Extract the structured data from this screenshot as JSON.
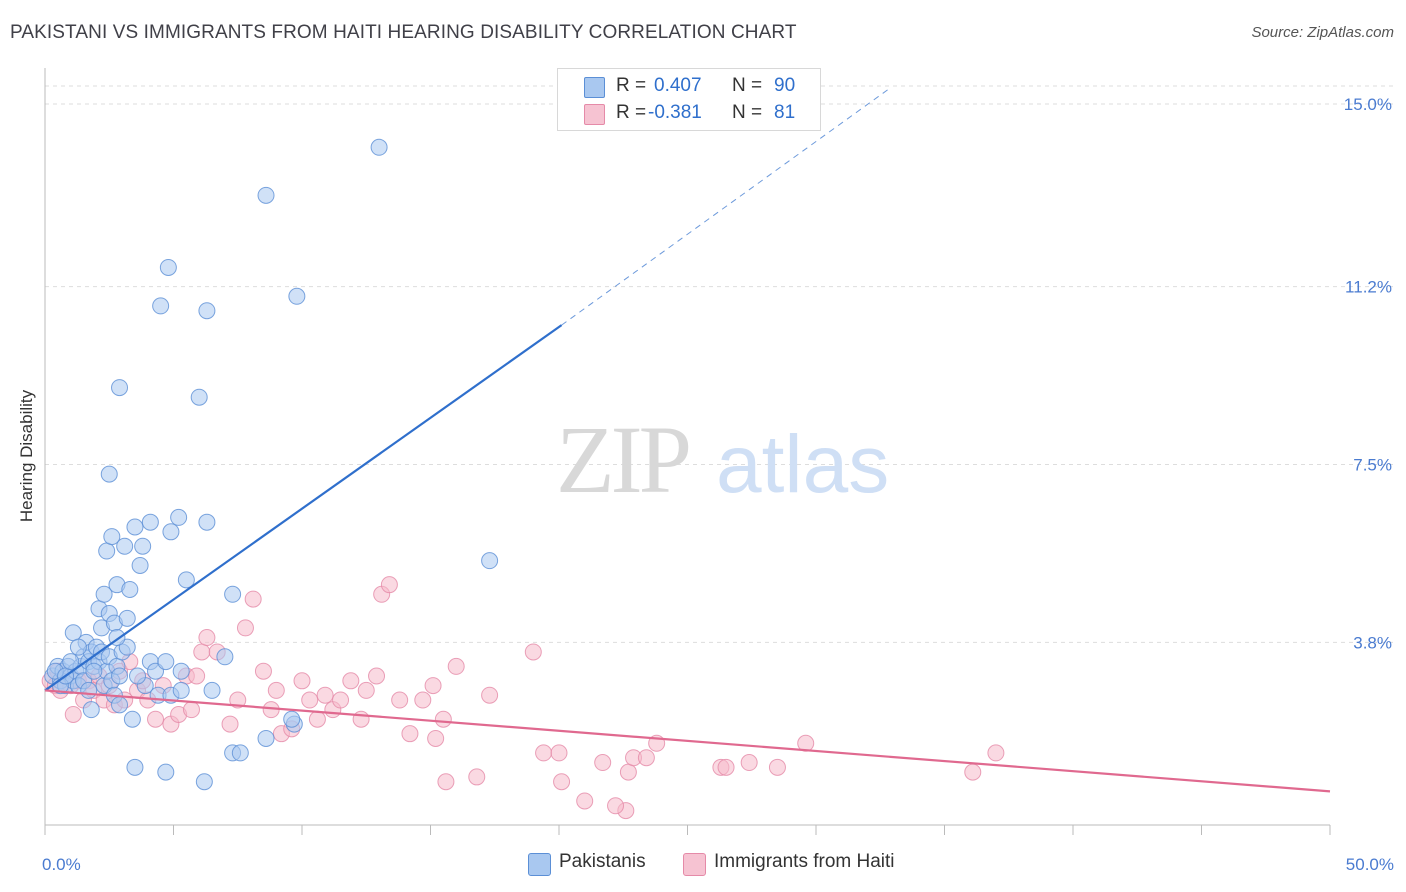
{
  "title": "PAKISTANI VS IMMIGRANTS FROM HAITI HEARING DISABILITY CORRELATION CHART",
  "source": "Source: ZipAtlas.com",
  "watermark": {
    "zip": "ZIP",
    "atlas": "atlas"
  },
  "stats": [
    {
      "r_label": "R =",
      "r_value": "0.407",
      "n_label": "N =",
      "n_value": "90"
    },
    {
      "r_label": "R =",
      "r_value": "-0.381",
      "n_label": "N =",
      "n_value": "81"
    }
  ],
  "legend": [
    {
      "label": "Pakistanis"
    },
    {
      "label": "Immigrants from Haiti"
    }
  ],
  "colors": {
    "blue_fill": "#a9c8f0",
    "blue_edge": "#5b8fd6",
    "blue_line": "#2f6fcc",
    "pink_fill": "#f6b9cb",
    "pink_edge": "#e58aa8",
    "pink_line": "#e0698f",
    "axis_text": "#4a7bd0",
    "grid": "#dddddd"
  },
  "chart_data": {
    "type": "scatter",
    "title": "PAKISTANI VS IMMIGRANTS FROM HAITI HEARING DISABILITY CORRELATION CHART",
    "xlabel": "",
    "ylabel": "Hearing Disability",
    "xlim": [
      0,
      50
    ],
    "ylim": [
      0,
      15.5
    ],
    "x_tick_labels": [
      {
        "value": 0,
        "label": "0.0%"
      },
      {
        "value": 50,
        "label": "50.0%"
      }
    ],
    "y_ticks": [
      {
        "value": 3.8,
        "label": "3.8%"
      },
      {
        "value": 7.5,
        "label": "7.5%"
      },
      {
        "value": 11.2,
        "label": "11.2%"
      },
      {
        "value": 15.0,
        "label": "15.0%"
      }
    ],
    "x_minor_ticks": [
      0,
      5,
      10,
      15,
      20,
      25,
      30,
      35,
      40,
      45,
      50
    ],
    "grid": true,
    "legend_position": "bottom-center",
    "series": [
      {
        "name": "Pakistanis",
        "r": 0.407,
        "n": 90,
        "trend": {
          "x": [
            0,
            20.1
          ],
          "y": [
            2.8,
            10.4
          ],
          "extension_x": [
            20.1,
            32.8
          ],
          "extension_y": [
            10.4,
            15.3
          ]
        },
        "points": [
          [
            0.3,
            3.1
          ],
          [
            0.5,
            3.3
          ],
          [
            0.6,
            3.0
          ],
          [
            0.7,
            3.2
          ],
          [
            0.8,
            2.9
          ],
          [
            0.9,
            3.3
          ],
          [
            1.0,
            3.1
          ],
          [
            1.1,
            3.0
          ],
          [
            1.2,
            3.2
          ],
          [
            1.3,
            2.9
          ],
          [
            1.4,
            3.3
          ],
          [
            1.5,
            3.5
          ],
          [
            1.6,
            3.8
          ],
          [
            1.7,
            3.4
          ],
          [
            1.8,
            3.6
          ],
          [
            1.9,
            3.3
          ],
          [
            2.0,
            3.7
          ],
          [
            2.1,
            3.4
          ],
          [
            2.2,
            3.6
          ],
          [
            2.3,
            2.9
          ],
          [
            2.4,
            3.2
          ],
          [
            2.5,
            3.5
          ],
          [
            2.6,
            3.0
          ],
          [
            2.7,
            2.7
          ],
          [
            2.8,
            3.3
          ],
          [
            1.1,
            4.0
          ],
          [
            1.3,
            3.7
          ],
          [
            1.5,
            3.0
          ],
          [
            1.7,
            2.8
          ],
          [
            1.9,
            3.2
          ],
          [
            0.4,
            3.2
          ],
          [
            0.6,
            2.9
          ],
          [
            0.8,
            3.1
          ],
          [
            1.0,
            3.4
          ],
          [
            2.2,
            4.1
          ],
          [
            2.1,
            4.5
          ],
          [
            2.3,
            4.8
          ],
          [
            2.5,
            4.4
          ],
          [
            2.7,
            4.2
          ],
          [
            3.2,
            4.3
          ],
          [
            2.4,
            5.7
          ],
          [
            2.6,
            6.0
          ],
          [
            3.1,
            5.8
          ],
          [
            3.5,
            6.2
          ],
          [
            3.7,
            5.4
          ],
          [
            4.1,
            6.3
          ],
          [
            4.9,
            6.1
          ],
          [
            5.2,
            6.4
          ],
          [
            5.5,
            5.1
          ],
          [
            6.3,
            6.3
          ],
          [
            2.8,
            5.0
          ],
          [
            3.3,
            4.9
          ],
          [
            3.8,
            5.8
          ],
          [
            2.5,
            7.3
          ],
          [
            2.9,
            9.1
          ],
          [
            4.5,
            10.8
          ],
          [
            4.8,
            11.6
          ],
          [
            6.0,
            8.9
          ],
          [
            6.3,
            10.7
          ],
          [
            8.6,
            13.1
          ],
          [
            9.8,
            11.0
          ],
          [
            13.0,
            14.1
          ],
          [
            7.3,
            4.8
          ],
          [
            7.0,
            3.5
          ],
          [
            6.5,
            2.8
          ],
          [
            5.3,
            3.2
          ],
          [
            4.4,
            2.7
          ],
          [
            3.9,
            2.9
          ],
          [
            3.4,
            2.2
          ],
          [
            2.9,
            2.5
          ],
          [
            3.0,
            3.6
          ],
          [
            3.2,
            3.7
          ],
          [
            3.6,
            3.1
          ],
          [
            4.1,
            3.4
          ],
          [
            4.3,
            3.2
          ],
          [
            4.7,
            3.4
          ],
          [
            4.9,
            2.7
          ],
          [
            5.3,
            2.8
          ],
          [
            3.5,
            1.2
          ],
          [
            4.7,
            1.1
          ],
          [
            6.2,
            0.9
          ],
          [
            7.3,
            1.5
          ],
          [
            7.6,
            1.5
          ],
          [
            8.6,
            1.8
          ],
          [
            9.7,
            2.1
          ],
          [
            2.8,
            3.9
          ],
          [
            1.8,
            2.4
          ],
          [
            2.9,
            3.1
          ],
          [
            17.3,
            5.5
          ],
          [
            9.6,
            2.2
          ]
        ]
      },
      {
        "name": "Immigrants from Haiti",
        "r": -0.381,
        "n": 81,
        "trend": {
          "x": [
            0,
            50
          ],
          "y": [
            2.8,
            0.7
          ]
        },
        "points": [
          [
            0.2,
            3.0
          ],
          [
            0.4,
            2.9
          ],
          [
            0.5,
            3.2
          ],
          [
            0.6,
            2.8
          ],
          [
            0.8,
            3.1
          ],
          [
            1.0,
            2.9
          ],
          [
            1.1,
            2.3
          ],
          [
            1.3,
            3.0
          ],
          [
            1.5,
            2.6
          ],
          [
            1.7,
            3.0
          ],
          [
            1.9,
            2.8
          ],
          [
            2.1,
            3.1
          ],
          [
            2.3,
            2.6
          ],
          [
            2.5,
            2.9
          ],
          [
            2.7,
            2.5
          ],
          [
            2.9,
            3.2
          ],
          [
            3.1,
            2.6
          ],
          [
            3.3,
            3.4
          ],
          [
            3.6,
            2.8
          ],
          [
            3.8,
            3.0
          ],
          [
            4.0,
            2.6
          ],
          [
            4.3,
            2.2
          ],
          [
            4.6,
            2.9
          ],
          [
            4.9,
            2.1
          ],
          [
            5.2,
            2.3
          ],
          [
            5.5,
            3.1
          ],
          [
            5.7,
            2.4
          ],
          [
            5.9,
            3.1
          ],
          [
            6.1,
            3.6
          ],
          [
            6.3,
            3.9
          ],
          [
            6.7,
            3.6
          ],
          [
            7.2,
            2.1
          ],
          [
            7.5,
            2.6
          ],
          [
            7.8,
            4.1
          ],
          [
            8.1,
            4.7
          ],
          [
            8.5,
            3.2
          ],
          [
            8.8,
            2.4
          ],
          [
            9.0,
            2.8
          ],
          [
            9.2,
            1.9
          ],
          [
            9.6,
            2.0
          ],
          [
            10.0,
            3.0
          ],
          [
            10.3,
            2.6
          ],
          [
            10.6,
            2.2
          ],
          [
            10.9,
            2.7
          ],
          [
            11.2,
            2.4
          ],
          [
            11.5,
            2.6
          ],
          [
            11.9,
            3.0
          ],
          [
            12.3,
            2.2
          ],
          [
            12.5,
            2.8
          ],
          [
            12.9,
            3.1
          ],
          [
            13.1,
            4.8
          ],
          [
            13.4,
            5.0
          ],
          [
            13.8,
            2.6
          ],
          [
            14.2,
            1.9
          ],
          [
            14.7,
            2.6
          ],
          [
            15.1,
            2.9
          ],
          [
            15.5,
            2.2
          ],
          [
            16.0,
            3.3
          ],
          [
            17.3,
            2.7
          ],
          [
            19.0,
            3.6
          ],
          [
            19.4,
            1.5
          ],
          [
            20.0,
            1.5
          ],
          [
            21.7,
            1.3
          ],
          [
            22.7,
            1.1
          ],
          [
            22.9,
            1.4
          ],
          [
            23.4,
            1.4
          ],
          [
            23.8,
            1.7
          ],
          [
            26.3,
            1.2
          ],
          [
            26.5,
            1.2
          ],
          [
            27.4,
            1.3
          ],
          [
            28.5,
            1.2
          ],
          [
            29.6,
            1.7
          ],
          [
            36.1,
            1.1
          ],
          [
            37.0,
            1.5
          ],
          [
            22.6,
            0.3
          ],
          [
            22.2,
            0.4
          ],
          [
            21.0,
            0.5
          ],
          [
            20.1,
            0.9
          ],
          [
            16.8,
            1.0
          ],
          [
            15.6,
            0.9
          ],
          [
            15.2,
            1.8
          ]
        ]
      }
    ]
  }
}
